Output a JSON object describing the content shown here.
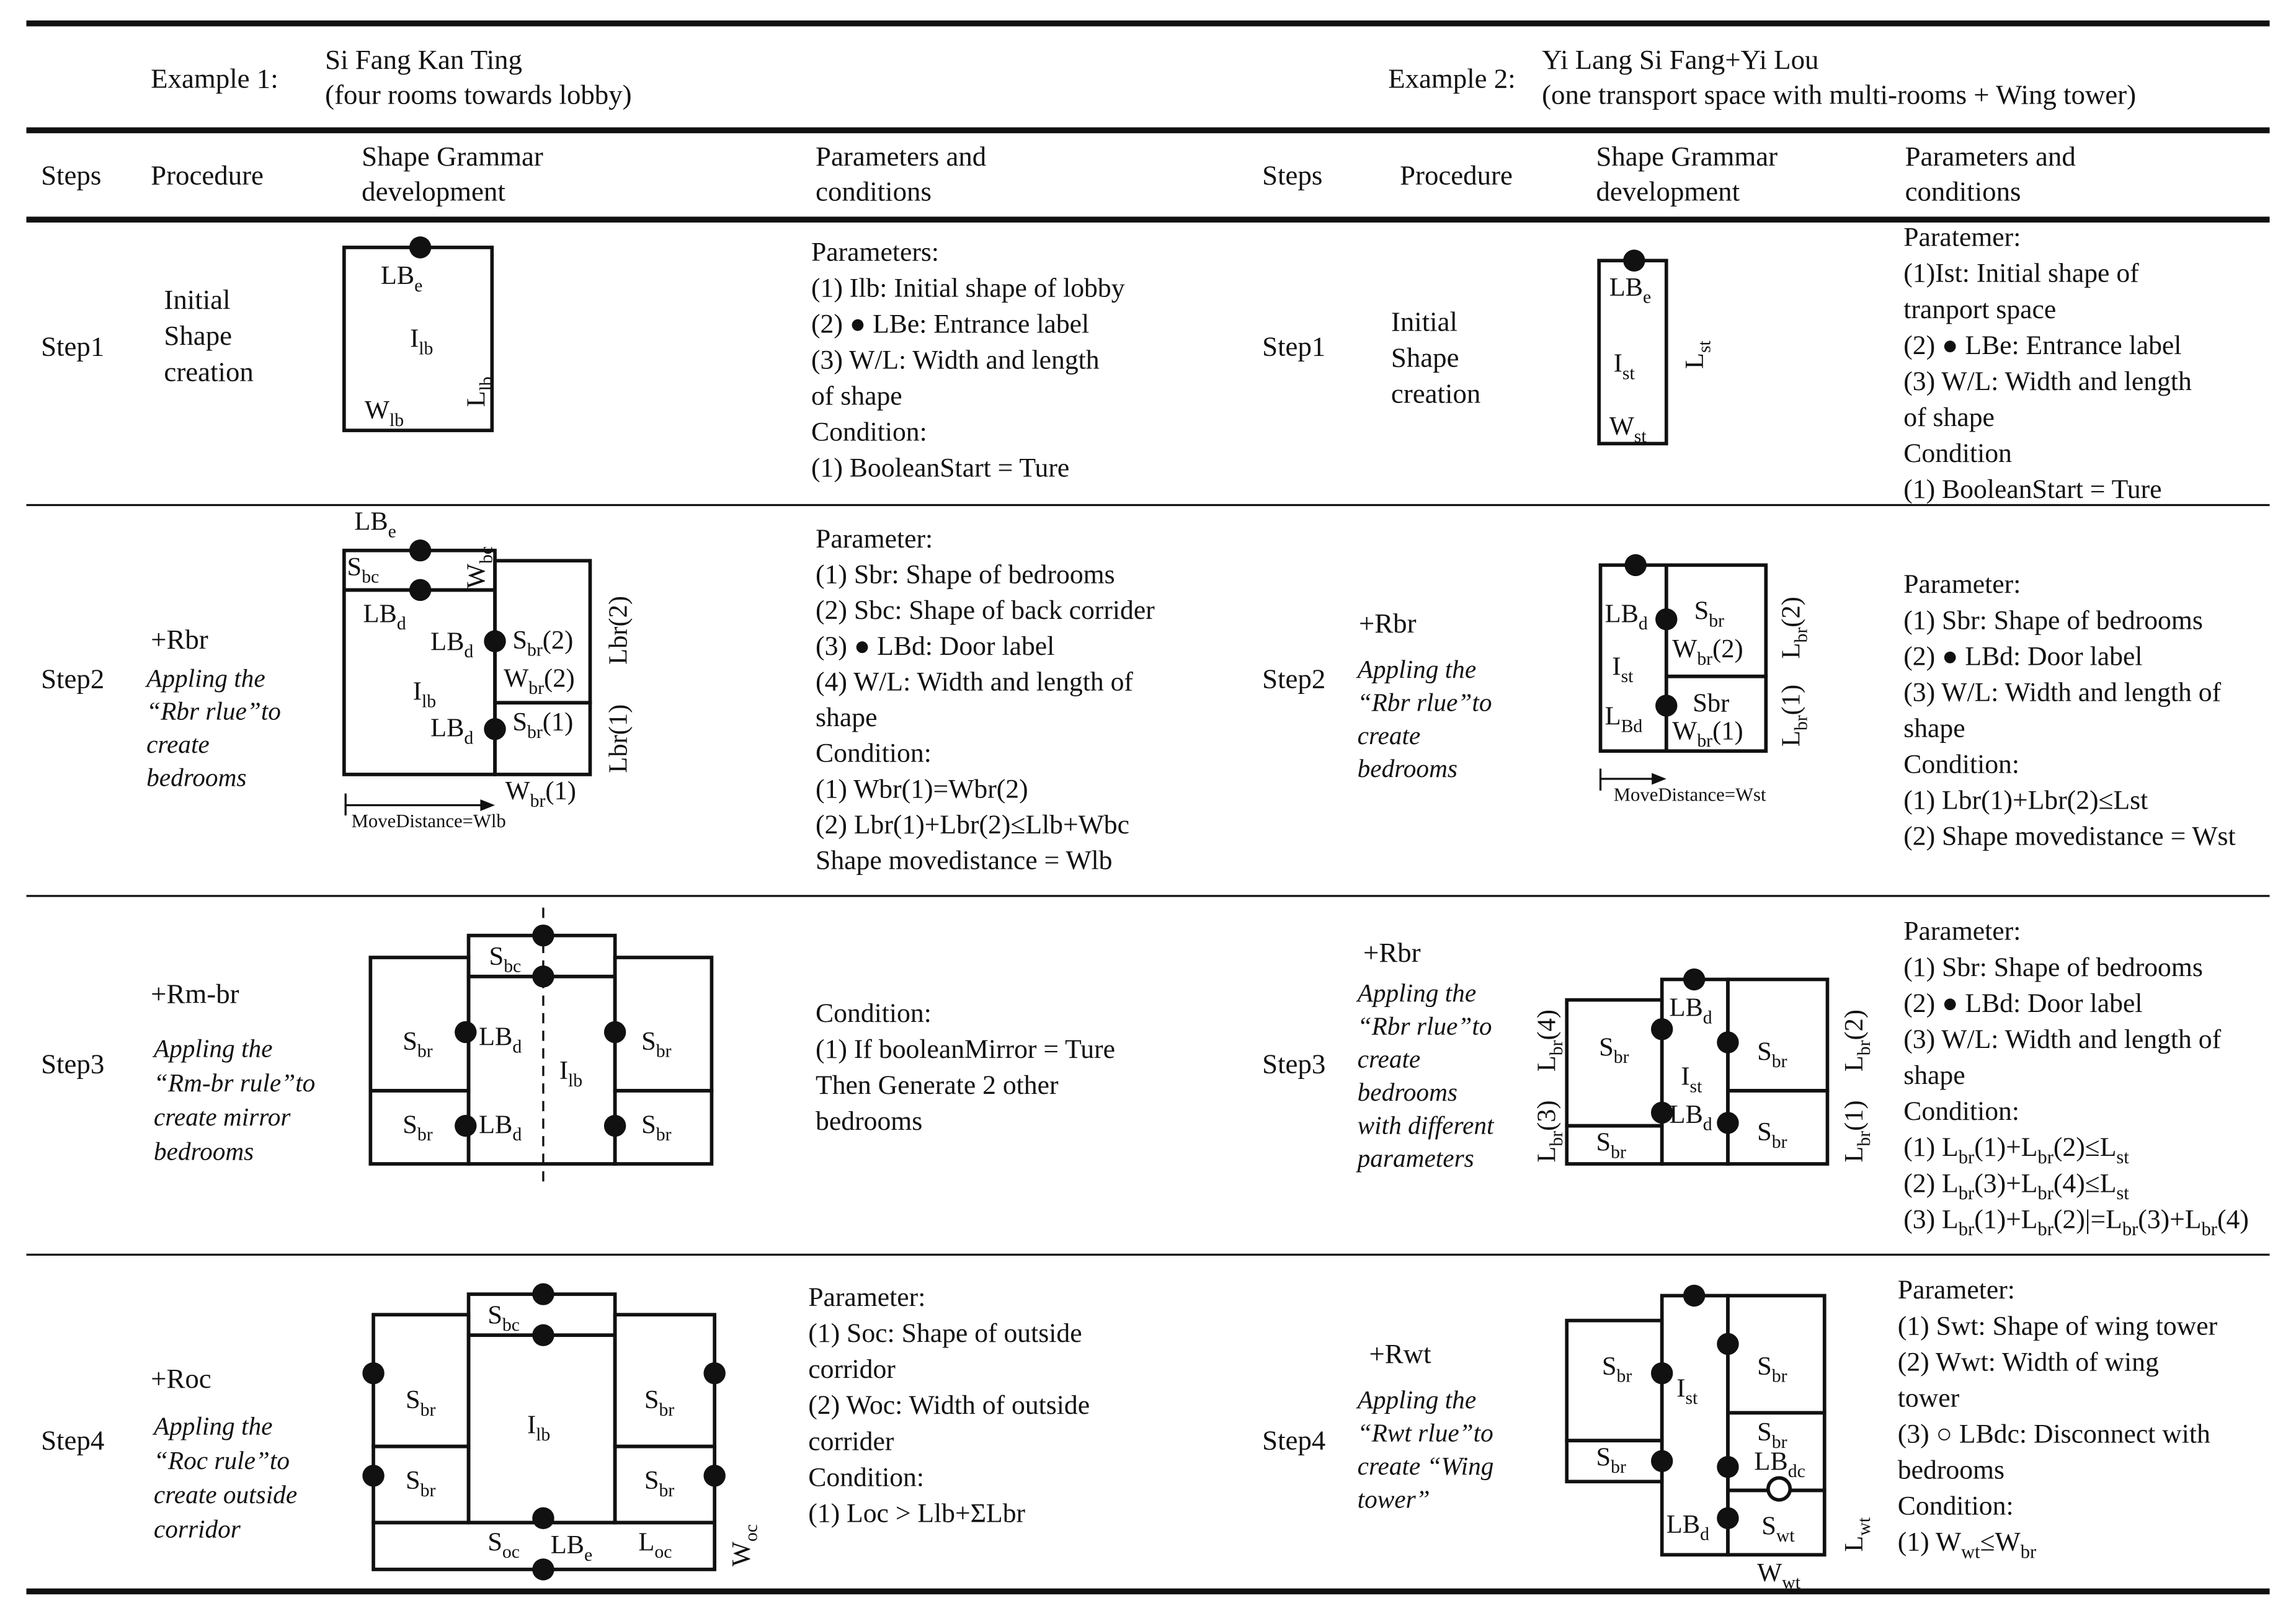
{
  "header": {
    "example_1": {
      "label": "Example 1:",
      "title": [
        "Si Fang Kan Ting",
        "(four rooms towards lobby)"
      ]
    },
    "example_2": {
      "label": "Example 2:",
      "title": [
        "Yi Lang Si Fang+Yi Lou",
        "(one transport space with multi-rooms + Wing tower)"
      ]
    }
  },
  "columns": {
    "left": [
      [
        "Steps"
      ],
      [
        "Procedure"
      ],
      [
        "Shape Grammar",
        "development"
      ],
      [
        "Parameters and",
        "conditions"
      ]
    ],
    "right": [
      [
        "Steps"
      ],
      [
        "Procedure"
      ],
      [
        "Shape Grammar",
        "development"
      ],
      [
        "Parameters and",
        "conditions"
      ]
    ]
  },
  "rows": [
    {
      "left": {
        "step": "Step1",
        "procedure": [
          "Initial",
          "Shape",
          "creation"
        ],
        "diagram": [
          [
            "LB",
            "e"
          ],
          [
            "I",
            "lb"
          ],
          [
            "L",
            "lb"
          ],
          [
            "W",
            "lb"
          ]
        ],
        "parameters": [
          "Parameters:",
          "(1) Ilb: Initial shape of lobby",
          "(2) ● LBe: Entrance label",
          "(3)  W/L: Width and length",
          "of shape",
          "Condition:",
          "(1) BooleanStart = Ture"
        ]
      },
      "right": {
        "step": "Step1",
        "procedure": [
          "Initial",
          "Shape",
          "creation"
        ],
        "diagram": [
          [
            "LB",
            "e"
          ],
          [
            "I",
            "st"
          ],
          [
            "W",
            "st"
          ],
          [
            "L",
            "st"
          ]
        ],
        "parameters": [
          "Paratemer:",
          "(1)Ist: Initial shape of",
          "tranport space",
          "(2) ● LBe: Entrance label",
          "(3) W/L: Width and length",
          "of shape",
          "Condition",
          "(1) BooleanStart = Ture"
        ]
      }
    },
    {
      "left": {
        "step": "Step2",
        "procedure": {
          "rule": "+Rbr",
          "description": [
            "Appling the",
            "“Rbr rlue”to",
            "create",
            "bedrooms"
          ]
        },
        "diagram": [
          [
            "LB",
            "e"
          ],
          [
            "S",
            "bc"
          ],
          [
            "W",
            "bc"
          ],
          [
            "LB",
            "d"
          ],
          [
            "LB",
            "d"
          ],
          [
            "S",
            "br",
            "(2)"
          ],
          [
            "W",
            "br",
            "(2)"
          ],
          [
            "I",
            "lb"
          ],
          [
            "S",
            "br",
            "(1)"
          ],
          [
            "LB",
            "d"
          ],
          [
            "Lbr(2)"
          ],
          [
            "Lbr(1)"
          ],
          [
            "W",
            "br",
            "(1)"
          ],
          "MoveDistance=Wlb"
        ],
        "parameters": [
          "Parameter:",
          "(1) Sbr: Shape of bedrooms",
          "(2) Sbc: Shape of back corrider",
          "(3) ● LBd: Door label",
          "(4) W/L: Width and length of",
          "shape",
          "Condition:",
          "(1) Wbr(1)=Wbr(2)",
          "(2) Lbr(1)+Lbr(2)≤Llb+Wbc",
          "Shape movedistance = Wlb"
        ]
      },
      "right": {
        "step": "Step2",
        "procedure": {
          "rule": "+Rbr",
          "description": [
            "Appling the",
            "“Rbr rlue”to",
            "create",
            "bedrooms"
          ]
        },
        "diagram": [
          [
            "LB",
            "d"
          ],
          [
            "S",
            "br"
          ],
          [
            "W",
            "br",
            "(2)"
          ],
          [
            "I",
            "st"
          ],
          [
            "Sbr"
          ],
          [
            "L",
            "Bd"
          ],
          [
            "W",
            "br",
            "(1)"
          ],
          [
            "L",
            "br",
            "(2)"
          ],
          [
            "L",
            "br",
            "(1)"
          ],
          "MoveDistance=Wst"
        ],
        "parameters": [
          "Parameter:",
          "(1) Sbr: Shape of bedrooms",
          "(2) ● LBd: Door label",
          "(3) W/L: Width and length of",
          "shape",
          "Condition:",
          "(1) Lbr(1)+Lbr(2)≤Lst",
          "(2) Shape movedistance = Wst"
        ]
      }
    },
    {
      "left": {
        "step": "Step3",
        "procedure": {
          "rule": "+Rm-br",
          "description": [
            "Appling the",
            "“Rm-br rule”to",
            "create mirror",
            "bedrooms"
          ]
        },
        "diagram": [
          [
            "S",
            "bc"
          ],
          [
            "S",
            "br"
          ],
          [
            "LB",
            "d"
          ],
          [
            "I",
            "lb"
          ],
          [
            "S",
            "br"
          ],
          [
            "S",
            "br"
          ],
          [
            "LB",
            "d"
          ],
          [
            "S",
            "br"
          ]
        ],
        "parameters": [
          "Condition:",
          "(1) If booleanMirror = Ture",
          "Then Generate 2 other",
          "bedrooms"
        ]
      },
      "right": {
        "step": "Step3",
        "procedure": {
          "rule": "+Rbr",
          "description": [
            "Appling the",
            "“Rbr rlue”to",
            "create",
            "bedrooms",
            "with different",
            "parameters"
          ]
        },
        "diagram": [
          [
            "LB",
            "d"
          ],
          [
            "S",
            "br"
          ],
          [
            "I",
            "st"
          ],
          [
            "S",
            "br"
          ],
          [
            "LB",
            "d"
          ],
          [
            "S",
            "br"
          ],
          [
            "S",
            "br"
          ],
          [
            "L",
            "br",
            "(4)"
          ],
          [
            "L",
            "br",
            "(3)"
          ],
          [
            "L",
            "br",
            "(2)"
          ],
          [
            "L",
            "br",
            "(1)"
          ]
        ],
        "parameters": [
          "Parameter:",
          "(1) Sbr: Shape of bedrooms",
          "(2) ● LBd: Door label",
          "(3) W/L: Width and length of",
          "shape",
          "Condition:",
          [
            "(1) L",
            "br",
            "(1)+L",
            "br",
            "(2)≤L",
            "st"
          ],
          [
            "(2) L",
            "br",
            "(3)+L",
            "br",
            "(4)≤L",
            "st"
          ],
          [
            "(3) L",
            "br",
            "(1)+L",
            "br",
            "(2)|=L",
            "br",
            "(3)+L",
            "br",
            "(4)"
          ]
        ]
      }
    },
    {
      "left": {
        "step": "Step4",
        "procedure": {
          "rule": "+Roc",
          "description": [
            "Appling the",
            "“Roc rule”to",
            "create outside",
            "corridor"
          ]
        },
        "diagram": [
          [
            "S",
            "bc"
          ],
          [
            "S",
            "br"
          ],
          [
            "I",
            "lb"
          ],
          [
            "S",
            "br"
          ],
          [
            "S",
            "br"
          ],
          [
            "S",
            "br"
          ],
          [
            "S",
            "oc"
          ],
          [
            "LB",
            "e"
          ],
          [
            "L",
            "oc"
          ],
          [
            "W",
            "oc"
          ]
        ],
        "parameters": [
          "Parameter:",
          "(1) Soc: Shape of outside",
          "corridor",
          "(2) Woc: Width of outside",
          "corrider",
          "Condition:",
          "(1) Loc > Llb+ΣLbr"
        ]
      },
      "right": {
        "step": "Step4",
        "procedure": {
          "rule": "+Rwt",
          "description": [
            "Appling the",
            "“Rwt rlue”to",
            "create “Wing",
            "tower”"
          ]
        },
        "diagram": [
          [
            "S",
            "br"
          ],
          [
            "I",
            "st"
          ],
          [
            "S",
            "br"
          ],
          [
            "S",
            "br"
          ],
          [
            "LB",
            "dc"
          ],
          [
            "S",
            "br"
          ],
          [
            "LB",
            "d"
          ],
          [
            "S",
            "wt"
          ],
          [
            "W",
            "wt"
          ],
          [
            "L",
            "wt"
          ]
        ],
        "parameters": [
          "Parameter:",
          "(1) Swt: Shape of wing tower",
          "(2) Wwt: Width of wing",
          "tower",
          "(3) ○ LBdc: Disconnect with",
          "bedrooms",
          "Condition:",
          [
            "(1) W",
            "wt",
            "≤W",
            "br"
          ]
        ]
      }
    }
  ]
}
